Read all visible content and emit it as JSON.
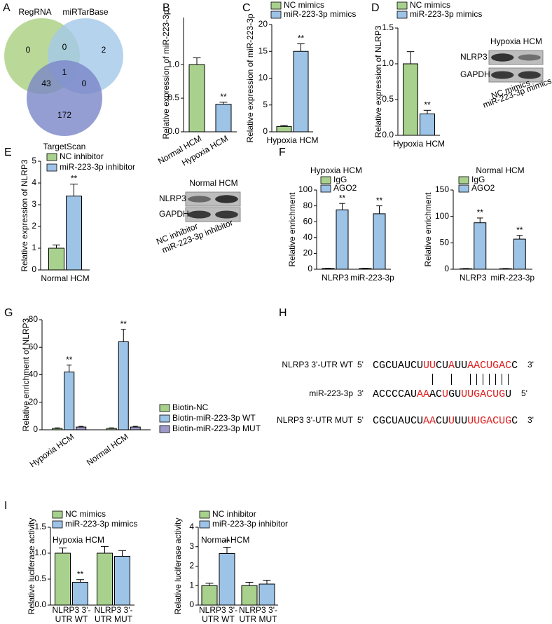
{
  "chart_data": [
    {
      "type": "venn",
      "panel": "A",
      "sets": [
        {
          "name": "RegRNA",
          "color": "#a9cf7e"
        },
        {
          "name": "miRTarBase",
          "color": "#a4c8ea"
        },
        {
          "name": "TargetScan",
          "color": "#7a86c8"
        }
      ],
      "regions": [
        0,
        0,
        2,
        43,
        1,
        0,
        172
      ]
    },
    {
      "type": "bar",
      "panel": "B",
      "ylabel": "Relative expression of miR-223-3p",
      "categories": [
        "Normal HCM",
        "Hypoxia HCM"
      ],
      "values": [
        1.0,
        0.41
      ],
      "errors": [
        0.1,
        0.03
      ],
      "stars": [
        null,
        "**"
      ],
      "colors": [
        "#a9d18e",
        "#9dc3e6"
      ],
      "ylim": [
        0,
        1.7
      ],
      "yticks": [
        {
          "value": 0,
          "label": "0.0"
        },
        0.5,
        {
          "value": 1,
          "label": "1.0"
        }
      ]
    },
    {
      "type": "bar",
      "panel": "C",
      "ylabel": "Relative expression of miR-223-3p",
      "categories": [
        "Hypoxia HCM"
      ],
      "series": [
        {
          "name": "NC mimics",
          "color": "#a9d18e",
          "values": [
            1
          ],
          "errors": [
            0.2
          ],
          "stars": [
            null
          ]
        },
        {
          "name": "miR-223-3p mimics",
          "color": "#9dc3e6",
          "values": [
            15
          ],
          "errors": [
            1.4
          ],
          "stars": [
            "**"
          ]
        }
      ],
      "ylim": [
        0,
        20
      ],
      "yticks": [
        0,
        5,
        10,
        15,
        20
      ]
    },
    {
      "type": "bar",
      "panel": "D",
      "ylabel": "Relative expression of NLRP3",
      "categories": [
        "Hypoxia HCM"
      ],
      "series": [
        {
          "name": "NC mimics",
          "color": "#a9d18e",
          "values": [
            1.0
          ],
          "errors": [
            0.17
          ],
          "stars": [
            null
          ]
        },
        {
          "name": "miR-223-3p mimics",
          "color": "#9dc3e6",
          "values": [
            0.3
          ],
          "errors": [
            0.05
          ],
          "stars": [
            "**"
          ]
        }
      ],
      "ylim": [
        0,
        1.5
      ],
      "yticks": [
        {
          "value": 0,
          "label": "0.0"
        },
        0.5,
        {
          "value": 1,
          "label": "1.0"
        },
        1.5
      ]
    },
    {
      "type": "bar",
      "panel": "E",
      "ylabel": "Relative expression of NLRP3",
      "categories": [
        "Normal HCM"
      ],
      "series": [
        {
          "name": "NC inhibitor",
          "color": "#a9d18e",
          "values": [
            1
          ],
          "errors": [
            0.15
          ],
          "stars": [
            null
          ]
        },
        {
          "name": "miR-223-3p inhibitor",
          "color": "#9dc3e6",
          "values": [
            3.4
          ],
          "errors": [
            0.55
          ],
          "stars": [
            "**"
          ]
        }
      ],
      "ylim": [
        0,
        5
      ],
      "yticks": [
        0,
        1,
        2,
        3,
        4,
        5
      ]
    },
    {
      "type": "bar",
      "panel": "F",
      "title": "Hypoxia HCM",
      "ylabel": "Relative enrichment",
      "categories": [
        "NLRP3",
        "miR-223-3p"
      ],
      "series": [
        {
          "name": "IgG",
          "color": "#a9d18e",
          "values": [
            1,
            1
          ],
          "errors": [
            0.3,
            0.3
          ],
          "stars": [
            null,
            null
          ]
        },
        {
          "name": "AGO2",
          "color": "#9dc3e6",
          "values": [
            75,
            70
          ],
          "errors": [
            8,
            10
          ],
          "stars": [
            "**",
            "**"
          ]
        }
      ],
      "ylim": [
        0,
        100
      ],
      "yticks": [
        0,
        20,
        40,
        60,
        80,
        100
      ]
    },
    {
      "type": "bar",
      "title": "Normal HCM",
      "ylabel": "Relative enrichment",
      "categories": [
        "NLRP3",
        "miR-223-3p"
      ],
      "series": [
        {
          "name": "IgG",
          "color": "#a9d18e",
          "values": [
            1,
            1
          ],
          "errors": [
            0.4,
            0.4
          ],
          "stars": [
            null,
            null
          ]
        },
        {
          "name": "AGO2",
          "color": "#9dc3e6",
          "values": [
            88,
            57
          ],
          "errors": [
            9,
            7
          ],
          "stars": [
            "**",
            "**"
          ]
        }
      ],
      "ylim": [
        0,
        150
      ],
      "yticks": [
        0,
        50,
        100,
        150
      ]
    },
    {
      "type": "bar",
      "panel": "G",
      "ylabel": "Relative enrichment of NLRP3",
      "categories": [
        "Hypoxia HCM",
        "Normal HCM"
      ],
      "series": [
        {
          "name": "Biotin-NC",
          "color": "#a9d18e",
          "values": [
            1,
            1
          ],
          "errors": [
            0.4,
            0.4
          ],
          "stars": [
            null,
            null
          ]
        },
        {
          "name": "Biotin-miR-223-3p WT",
          "color": "#9dc3e6",
          "values": [
            42,
            64
          ],
          "errors": [
            5,
            9
          ],
          "stars": [
            "**",
            "**"
          ]
        },
        {
          "name": "Biotin-miR-223-3p MUT",
          "color": "#9e9ac8",
          "values": [
            2,
            2
          ],
          "errors": [
            0.5,
            0.5
          ],
          "stars": [
            null,
            null
          ]
        }
      ],
      "ylim": [
        0,
        80
      ],
      "yticks": [
        0,
        20,
        40,
        60,
        80
      ]
    },
    {
      "type": "bar",
      "panel": "I",
      "title": "Hypoxia HCM",
      "ylabel": "Relative luciferase activity",
      "categories": [
        [
          "NLRP3 3'-",
          "UTR WT"
        ],
        [
          "NLRP3 3'-",
          "UTR MUT"
        ]
      ],
      "series": [
        {
          "name": "NC mimics",
          "color": "#a9d18e",
          "values": [
            1.0,
            1.0
          ],
          "errors": [
            0.1,
            0.13
          ],
          "stars": [
            null,
            null
          ]
        },
        {
          "name": "miR-223-3p mimics",
          "color": "#9dc3e6",
          "values": [
            0.44,
            0.94
          ],
          "errors": [
            0.05,
            0.11
          ],
          "stars": [
            "**",
            null
          ]
        }
      ],
      "ylim": [
        0,
        1.5
      ],
      "yticks": [
        {
          "value": 0,
          "label": "0.0"
        },
        0.5,
        {
          "value": 1,
          "label": "1.0"
        },
        1.5
      ]
    },
    {
      "type": "bar",
      "title": "Normal HCM",
      "ylabel": "Relative luciferase activity",
      "categories": [
        [
          "NLRP3 3'-",
          "UTR WT"
        ],
        [
          "NLRP3 3'-",
          "UTR MUT"
        ]
      ],
      "series": [
        {
          "name": "NC inhibitor",
          "color": "#a9d18e",
          "values": [
            1,
            1
          ],
          "errors": [
            0.12,
            0.17
          ],
          "stars": [
            null,
            null
          ]
        },
        {
          "name": "miR-223-3p inhibitor",
          "color": "#9dc3e6",
          "values": [
            2.65,
            1.08
          ],
          "errors": [
            0.32,
            0.2
          ],
          "stars": [
            "**",
            null
          ]
        }
      ],
      "ylim": [
        0,
        4
      ],
      "yticks": [
        0,
        1,
        2,
        3,
        4
      ]
    }
  ],
  "blots": [
    {
      "title": "Hypoxia HCM",
      "rows": [
        "NLRP3",
        "GAPDH"
      ],
      "lanes": [
        "NC mimics",
        "miR-223-3p mimics"
      ]
    },
    {
      "title": "Normal HCM",
      "rows": [
        "NLRP3",
        "GAPDH"
      ],
      "lanes": [
        "NC inhibitor",
        "miR-223-3p inhibitor"
      ]
    }
  ],
  "alignment": {
    "panel": "H",
    "highlight_color": "#e02020",
    "rows": [
      {
        "label": "NLRP3 3'-UTR WT",
        "start": "5'",
        "end": "3'",
        "sequence": [
          {
            "text": "CGCUAUCU"
          },
          {
            "text": "UU",
            "highlight": true
          },
          {
            "text": "CU"
          },
          {
            "text": "A",
            "highlight": true
          },
          {
            "text": "UU"
          },
          {
            "text": "AACUGAC",
            "highlight": true
          },
          {
            "text": "C"
          }
        ]
      },
      {
        "label": "miR-223-3p",
        "start": "3'",
        "end": "5'",
        "sequence": [
          {
            "text": "ACCCCAU"
          },
          {
            "text": "AA",
            "highlight": true
          },
          {
            "text": "AC"
          },
          {
            "text": "U",
            "highlight": true
          },
          {
            "text": "GU"
          },
          {
            "text": "UUGACUG",
            "highlight": true
          },
          {
            "text": "U"
          }
        ]
      },
      {
        "label": "NLRP3 3'-UTR MUT",
        "start": "5'",
        "end": "3'",
        "sequence": [
          {
            "text": "CGCUAUCU"
          },
          {
            "text": "AA",
            "highlight": true
          },
          {
            "text": "CU"
          },
          {
            "text": "U",
            "highlight": true
          },
          {
            "text": "UU"
          },
          {
            "text": "UUGACUG",
            "highlight": true
          },
          {
            "text": "C"
          }
        ]
      }
    ]
  }
}
